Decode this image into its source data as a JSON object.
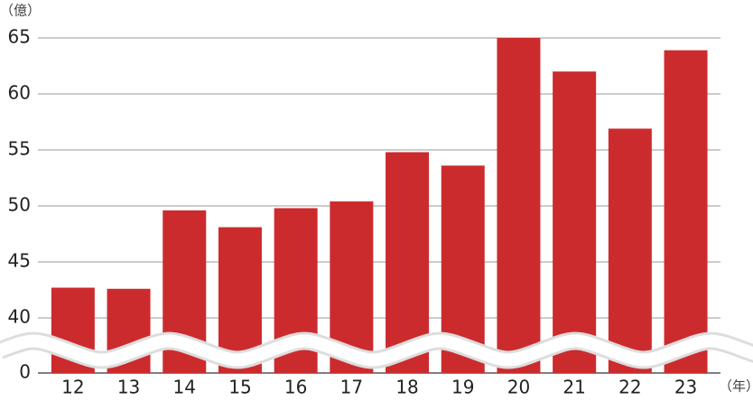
{
  "chart_data": {
    "type": "bar",
    "y_unit": "（億）",
    "x_unit": "（年）",
    "categories": [
      "12",
      "13",
      "14",
      "15",
      "16",
      "17",
      "18",
      "19",
      "20",
      "21",
      "22",
      "23"
    ],
    "values": [
      42.7,
      42.6,
      49.6,
      48.1,
      49.8,
      50.4,
      54.8,
      53.6,
      65.0,
      62.0,
      56.9,
      63.9
    ],
    "color": "#cc2b2d",
    "ylim": [
      0,
      65
    ],
    "y_break": [
      0,
      40
    ],
    "yticks": [
      0,
      40,
      45,
      50,
      55,
      60,
      65
    ],
    "grid": true
  }
}
